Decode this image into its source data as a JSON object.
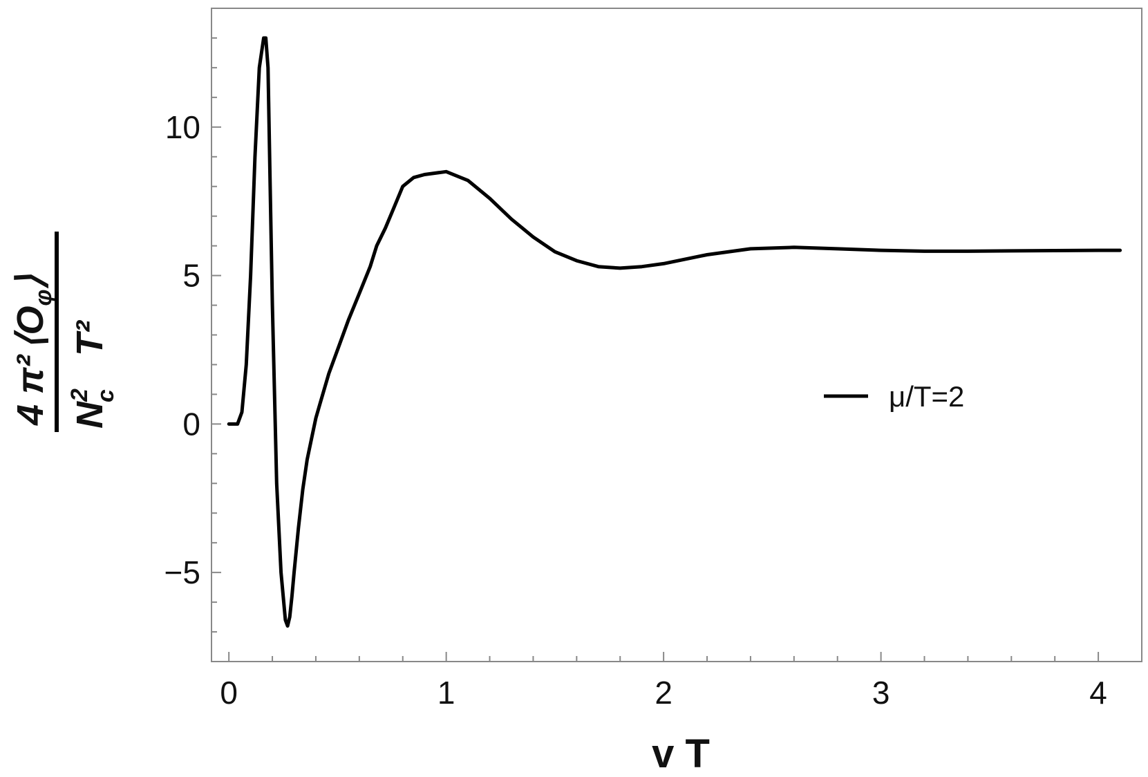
{
  "chart_data": {
    "type": "line",
    "xlabel": "v T",
    "ylabel": {
      "numerator_left": "4 π²",
      "numerator_right": "⟨O",
      "numerator_sub": "φ",
      "numerator_close": "⟩",
      "denominator_left": "N",
      "denominator_sup": "2",
      "denominator_sub": "c",
      "denominator_right": "T²"
    },
    "xlim": [
      -0.08,
      4.2
    ],
    "ylim": [
      -8,
      14
    ],
    "x_ticks": [
      "0",
      "1",
      "2",
      "3",
      "4"
    ],
    "y_ticks": [
      "−5",
      "0",
      "5",
      "10"
    ],
    "x_tick_values": [
      0,
      1,
      2,
      3,
      4
    ],
    "y_tick_values": [
      -5,
      0,
      5,
      10
    ],
    "legend": {
      "position": "right-middle",
      "label": "μ/T=2"
    },
    "grid": false,
    "series": [
      {
        "name": "μ/T=2",
        "color": "#000000",
        "x": [
          0,
          0.04,
          0.06,
          0.08,
          0.1,
          0.12,
          0.14,
          0.16,
          0.17,
          0.18,
          0.19,
          0.2,
          0.22,
          0.24,
          0.26,
          0.27,
          0.28,
          0.29,
          0.3,
          0.32,
          0.34,
          0.36,
          0.38,
          0.4,
          0.42,
          0.44,
          0.46,
          0.5,
          0.55,
          0.6,
          0.65,
          0.68,
          0.72,
          0.76,
          0.8,
          0.85,
          0.9,
          1.0,
          1.1,
          1.2,
          1.3,
          1.4,
          1.5,
          1.6,
          1.7,
          1.8,
          1.9,
          2.0,
          2.2,
          2.4,
          2.6,
          2.8,
          3.0,
          3.2,
          3.4,
          3.6,
          3.8,
          4.0,
          4.1
        ],
        "values": [
          0,
          0,
          0.4,
          2.0,
          5.0,
          9.0,
          12.0,
          13.0,
          13.0,
          12.0,
          8.0,
          4.0,
          -2.0,
          -5.0,
          -6.6,
          -6.8,
          -6.5,
          -5.8,
          -5.0,
          -3.5,
          -2.2,
          -1.2,
          -0.5,
          0.2,
          0.7,
          1.2,
          1.7,
          2.5,
          3.5,
          4.4,
          5.3,
          6.0,
          6.6,
          7.3,
          8.0,
          8.3,
          8.4,
          8.5,
          8.2,
          7.6,
          6.9,
          6.3,
          5.8,
          5.5,
          5.3,
          5.25,
          5.3,
          5.4,
          5.7,
          5.9,
          5.95,
          5.9,
          5.85,
          5.82,
          5.82,
          5.83,
          5.84,
          5.85,
          5.85
        ]
      }
    ]
  }
}
